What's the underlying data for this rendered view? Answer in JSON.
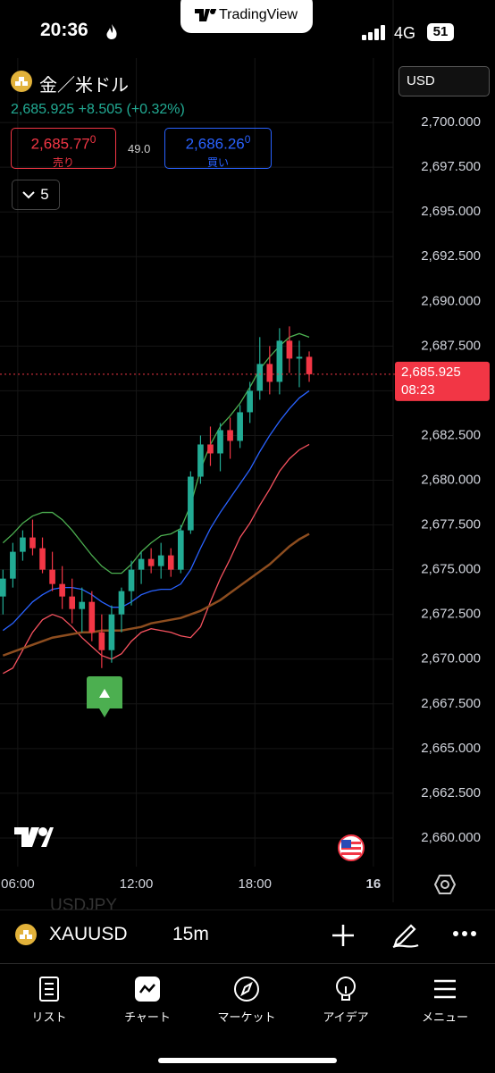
{
  "status_bar": {
    "time": "20:36",
    "network": "4G",
    "battery": "51"
  },
  "brand": "TradingView",
  "header": {
    "symbol_name": "金／米ドル",
    "price": "2,685.925",
    "change": "+8.505",
    "change_pct": "(+0.32%)",
    "sell": {
      "price": "2,685.77",
      "sup": "0",
      "label": "売り"
    },
    "spread": "49.0",
    "buy": {
      "price": "2,686.26",
      "sup": "0",
      "label": "買い"
    },
    "indicators_count": "5",
    "currency": "USD"
  },
  "chart_data": {
    "type": "candlestick",
    "x": [
      5.25,
      5.75,
      6.25,
      6.75,
      7.25,
      7.75,
      8.25,
      8.75,
      9.25,
      9.75,
      10.25,
      10.75,
      11.25,
      11.75,
      12.25,
      12.75,
      13.25,
      13.75,
      14.25,
      14.75,
      15.25,
      15.75,
      16.25,
      16.75,
      17.25,
      17.75,
      18.25,
      18.75,
      19.25,
      19.75,
      20.25,
      20.75
    ],
    "open": [
      2673.5,
      2674.5,
      2676.0,
      2676.8,
      2676.2,
      2675.0,
      2674.2,
      2673.5,
      2672.8,
      2673.2,
      2671.5,
      2670.5,
      2672.5,
      2673.8,
      2675.0,
      2675.6,
      2675.2,
      2675.8,
      2675.0,
      2677.2,
      2680.2,
      2682.0,
      2681.5,
      2682.8,
      2682.2,
      2683.8,
      2685.0,
      2686.5,
      2685.5,
      2687.8,
      2686.8,
      2686.9
    ],
    "high": [
      2675.0,
      2676.5,
      2677.2,
      2677.8,
      2676.8,
      2676.0,
      2675.2,
      2674.5,
      2674.0,
      2673.8,
      2672.5,
      2673.0,
      2674.0,
      2675.5,
      2676.0,
      2676.2,
      2676.5,
      2676.2,
      2677.5,
      2680.5,
      2682.5,
      2683.0,
      2683.2,
      2683.5,
      2684.2,
      2685.5,
      2688.0,
      2687.5,
      2688.5,
      2688.6,
      2687.8,
      2687.2
    ],
    "low": [
      2672.5,
      2674.0,
      2675.5,
      2675.8,
      2674.8,
      2673.8,
      2672.8,
      2672.0,
      2671.5,
      2671.0,
      2669.5,
      2669.8,
      2671.5,
      2673.0,
      2674.2,
      2674.8,
      2674.5,
      2674.6,
      2674.8,
      2677.0,
      2679.8,
      2680.8,
      2680.5,
      2681.2,
      2681.8,
      2683.2,
      2684.5,
      2684.8,
      2684.8,
      2686.0,
      2685.2,
      2685.5
    ],
    "close": [
      2674.5,
      2676.0,
      2676.8,
      2676.2,
      2675.0,
      2674.2,
      2673.5,
      2672.8,
      2673.2,
      2671.5,
      2670.5,
      2672.5,
      2673.8,
      2675.0,
      2675.6,
      2675.2,
      2675.8,
      2675.0,
      2677.2,
      2680.2,
      2682.0,
      2681.5,
      2682.8,
      2682.2,
      2683.8,
      2685.0,
      2686.5,
      2685.5,
      2687.8,
      2686.8,
      2686.9,
      2685.925
    ],
    "up_color": "#22ab94",
    "down_color": "#f23645",
    "lines": [
      {
        "color": "#2962ff",
        "values": [
          2671.6,
          2672.0,
          2672.6,
          2673.2,
          2673.6,
          2673.9,
          2674.0,
          2674.0,
          2673.9,
          2673.6,
          2673.2,
          2672.9,
          2672.9,
          2673.2,
          2673.6,
          2673.8,
          2673.9,
          2673.9,
          2674.2,
          2675.0,
          2676.2,
          2677.3,
          2678.2,
          2679.0,
          2679.8,
          2680.6,
          2681.6,
          2682.5,
          2683.3,
          2684.0,
          2684.6,
          2685.0
        ]
      },
      {
        "color": "#4caf50",
        "values": [
          2676.5,
          2677.0,
          2677.6,
          2678.0,
          2678.2,
          2678.2,
          2677.8,
          2677.2,
          2676.5,
          2675.8,
          2675.2,
          2674.8,
          2674.8,
          2675.3,
          2676.0,
          2676.5,
          2676.9,
          2677.0,
          2677.3,
          2678.6,
          2680.6,
          2682.0,
          2683.0,
          2683.6,
          2684.3,
          2685.2,
          2686.2,
          2686.9,
          2687.5,
          2688.0,
          2688.2,
          2688.0
        ]
      },
      {
        "color": "#f7525f",
        "values": [
          2669.2,
          2669.5,
          2670.5,
          2671.5,
          2672.2,
          2672.5,
          2672.3,
          2671.8,
          2671.2,
          2670.7,
          2670.2,
          2670.0,
          2670.3,
          2671.0,
          2671.5,
          2671.7,
          2671.6,
          2671.5,
          2671.3,
          2671.2,
          2671.8,
          2673.2,
          2674.5,
          2675.6,
          2676.8,
          2677.6,
          2678.6,
          2679.5,
          2680.5,
          2681.2,
          2681.7,
          2682.0
        ]
      },
      {
        "color": "#8d4d1f",
        "values": [
          2670.2,
          2670.4,
          2670.6,
          2670.8,
          2671.0,
          2671.2,
          2671.3,
          2671.4,
          2671.5,
          2671.5,
          2671.6,
          2671.6,
          2671.6,
          2671.7,
          2671.8,
          2672.0,
          2672.1,
          2672.2,
          2672.3,
          2672.5,
          2672.7,
          2673.0,
          2673.3,
          2673.7,
          2674.1,
          2674.5,
          2674.9,
          2675.3,
          2675.8,
          2676.3,
          2676.7,
          2677.0
        ]
      }
    ],
    "xlim": [
      5.1,
      25.0
    ],
    "ylim": [
      2658.4,
      2703.6
    ],
    "xticks": [
      {
        "value": 6,
        "label": "06:00"
      },
      {
        "value": 12,
        "label": "12:00"
      },
      {
        "value": 18,
        "label": "18:00"
      },
      {
        "value": 24,
        "label": "16"
      }
    ],
    "yticks": [
      {
        "value": 2660,
        "label": "2,660.000"
      },
      {
        "value": 2662.5,
        "label": "2,662.500"
      },
      {
        "value": 2665,
        "label": "2,665.000"
      },
      {
        "value": 2667.5,
        "label": "2,667.500"
      },
      {
        "value": 2670,
        "label": "2,670.000"
      },
      {
        "value": 2672.5,
        "label": "2,672.500"
      },
      {
        "value": 2675,
        "label": "2,675.000"
      },
      {
        "value": 2677.5,
        "label": "2,677.500"
      },
      {
        "value": 2680,
        "label": "2,680.000"
      },
      {
        "value": 2682.5,
        "label": "2,682.500"
      },
      {
        "value": 2685,
        "label": "2,685.000"
      },
      {
        "value": 2687.5,
        "label": "2,687.500"
      },
      {
        "value": 2690,
        "label": "2,690.000"
      },
      {
        "value": 2692.5,
        "label": "2,692.500"
      },
      {
        "value": 2695,
        "label": "2,695.000"
      },
      {
        "value": 2697.5,
        "label": "2,697.500"
      },
      {
        "value": 2700,
        "label": "2,700.000"
      }
    ],
    "grid": true,
    "last_price": {
      "value": 2685.925,
      "label": "2,685.925"
    },
    "countdown": "08:23"
  },
  "toolbar": {
    "symbol": "XAUUSD",
    "interval": "15m",
    "ghost_symbol": "USDJPY"
  },
  "nav": [
    "リスト",
    "チャート",
    "マーケット",
    "アイデア",
    "メニュー"
  ]
}
